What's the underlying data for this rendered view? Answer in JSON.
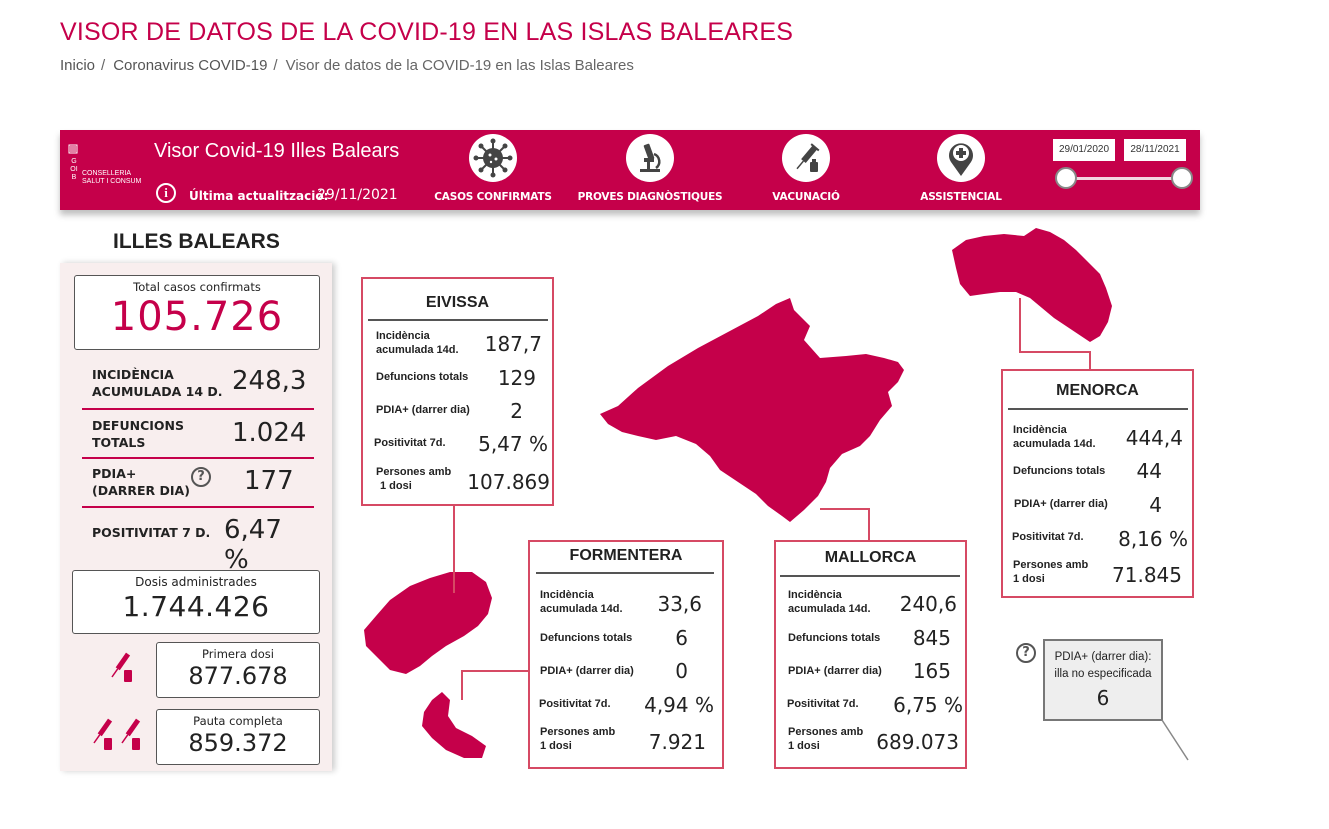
{
  "page": {
    "title": "VISOR DE DATOS DE LA COVID-19 EN LAS ISLAS BALEARES",
    "breadcrumb": [
      "Inicio",
      "Coronavirus COVID-19",
      "Visor de datos de la COVID-19 en las Islas Baleares"
    ],
    "breadcrumb_sep": "/"
  },
  "header": {
    "logo_vertical": "GOIB",
    "logo_text": "CONSELLERIA SALUT I CONSUM",
    "title": "Visor Covid-19 Illes Balears",
    "updated_label": "Última actualització:",
    "updated_date": "29/11/2021",
    "nav": [
      {
        "label": "CASOS CONFIRMATS",
        "icon": "virus-icon"
      },
      {
        "label": "PROVES DIAGNÒSTIQUES",
        "icon": "microscope-icon"
      },
      {
        "label": "VACUNACIÓ",
        "icon": "syringe-icon"
      },
      {
        "label": "ASSISTENCIAL",
        "icon": "medical-pin-icon"
      }
    ],
    "date_from": "29/01/2020",
    "date_to": "28/11/2021"
  },
  "colors": {
    "brand": "#c5004a",
    "card_border": "#d64a64",
    "panel_bg": "#f8eeee"
  },
  "balears": {
    "title": "ILLES BALEARS",
    "total_label": "Total casos confirmats",
    "total_value": "105.726",
    "stats": {
      "incidencia_label_1": "INCIDÈNCIA",
      "incidencia_label_2": "ACUMULADA 14 D.",
      "incidencia_value": "248,3",
      "defuncions_label_1": "DEFUNCIONS",
      "defuncions_label_2": "TOTALS",
      "defuncions_value": "1.024",
      "pdia_label_1": "PDIA+",
      "pdia_label_2": "(DARRER DIA)",
      "pdia_value": "177",
      "positivitat_label": "POSITIVITAT 7 D.",
      "positivitat_value": "6,47 %"
    },
    "doses_label": "Dosis administrades",
    "doses_value": "1.744.426",
    "first_dose_label": "Primera dosi",
    "first_dose_value": "877.678",
    "full_label": "Pauta completa",
    "full_value": "859.372"
  },
  "card_labels": {
    "incidencia_1": "Incidència",
    "incidencia_2": "acumulada 14d.",
    "defuncions": "Defuncions totals",
    "pdia": "PDIA+ (darrer dia)",
    "positivitat": "Positivitat 7d.",
    "persones_1": "Persones amb",
    "persones_2": "1 dosi"
  },
  "islands": {
    "eivissa": {
      "name": "EIVISSA",
      "incidencia": "187,7",
      "defuncions": "129",
      "pdia": "2",
      "positivitat": "5,47 %",
      "persones": "107.869"
    },
    "formentera": {
      "name": "FORMENTERA",
      "incidencia": "33,6",
      "defuncions": "6",
      "pdia": "0",
      "positivitat": "4,94 %",
      "persones": "7.921"
    },
    "mallorca": {
      "name": "MALLORCA",
      "incidencia": "240,6",
      "defuncions": "845",
      "pdia": "165",
      "positivitat": "6,75 %",
      "persones": "689.073"
    },
    "menorca": {
      "name": "MENORCA",
      "incidencia": "444,4",
      "defuncions": "44",
      "pdia": "4",
      "positivitat": "8,16 %",
      "persones": "71.845"
    }
  },
  "unspecified": {
    "label_1": "PDIA+ (darrer dia):",
    "label_2": "illa no especificada",
    "value": "6"
  }
}
